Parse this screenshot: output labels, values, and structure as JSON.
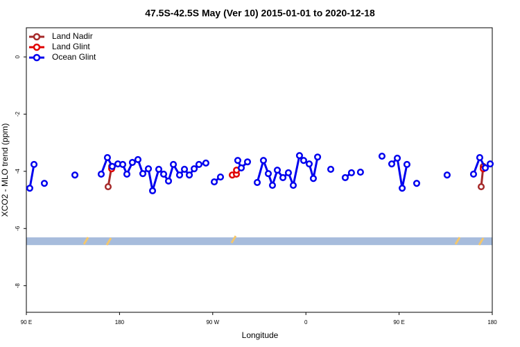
{
  "chart_data": {
    "type": "line",
    "title": "47.5S-42.5S May (Ver 10)   2015-01-01 to 2020-12-18",
    "x_label": "Longitude",
    "y_label": "XCO2 - MLO trend (ppm)",
    "xlim": [
      90,
      540
    ],
    "xticks": [
      {
        "value": 90,
        "label": "90 E"
      },
      180,
      {
        "value": 270,
        "label": "90 W"
      },
      {
        "value": 360,
        "label": "0"
      },
      {
        "value": 450,
        "label": "90 E"
      },
      180
    ],
    "ylim": [
      -8.93,
      1.02
    ],
    "yticks": [
      0,
      -2,
      -4,
      -6,
      -8
    ],
    "band": [
      -6.58,
      -6.31
    ],
    "band_color": "#a7bcdc",
    "legend": "top-left",
    "series": [
      {
        "name": "Land Nadir",
        "color": "#a52a2a",
        "x": [
          169.0,
          172.4,
          null,
          529.3,
          531.3
        ],
        "values": [
          -4.54,
          -3.83,
          null,
          -4.54,
          -3.83
        ]
      },
      {
        "name": "Land Glint",
        "color": "#e00000",
        "x": [
          172.4,
          null,
          288.9,
          292.9,
          293.0,
          null,
          531.3
        ],
        "values": [
          -3.91,
          null,
          -4.13,
          -4.1,
          -3.96,
          null,
          -3.91
        ]
      },
      {
        "name": "Ocean Glint",
        "color": "#0000ee",
        "x": [
          93.3,
          97.4,
          null,
          107.4,
          null,
          136.9,
          null,
          162.3,
          168.3,
          173.0,
          178.4,
          183.1,
          187.1,
          192.4,
          197.8,
          202.5,
          207.9,
          211.9,
          217.9,
          222.6,
          227.3,
          232.0,
          238.0,
          242.7,
          247.4,
          252.1,
          256.7,
          263.4,
          null,
          271.5,
          277.5,
          null,
          294.2,
          297.6,
          303.6,
          null,
          313.0,
          319.0,
          323.7,
          327.7,
          332.4,
          337.8,
          343.1,
          347.8,
          353.8,
          357.8,
          363.2,
          367.2,
          371.3,
          null,
          384.0,
          null,
          398.0,
          404.0,
          null,
          412.7,
          null,
          433.5,
          null,
          442.9,
          448.3,
          453.0,
          457.6,
          null,
          467.0,
          null,
          496.4,
          null,
          521.9,
          527.9,
          533.3,
          538.0
        ],
        "values": [
          -4.59,
          -3.76,
          null,
          -4.42,
          null,
          -4.13,
          null,
          -4.1,
          -3.52,
          -3.83,
          -3.74,
          -3.76,
          -4.1,
          -3.69,
          -3.59,
          -4.08,
          -3.91,
          -4.68,
          -3.93,
          -4.1,
          -4.34,
          -3.76,
          -4.13,
          -3.93,
          -4.13,
          -3.91,
          -3.76,
          -3.71,
          null,
          -4.37,
          -4.2,
          null,
          -3.62,
          -3.88,
          -3.67,
          null,
          -4.39,
          -3.62,
          -4.08,
          -4.49,
          -3.96,
          -4.22,
          -4.05,
          -4.49,
          -3.45,
          -3.62,
          -3.74,
          -4.25,
          -3.5,
          null,
          -3.93,
          null,
          -4.22,
          -4.05,
          null,
          -4.03,
          null,
          -3.47,
          null,
          -3.74,
          -3.54,
          -4.59,
          -3.76,
          null,
          -4.42,
          null,
          -4.13,
          null,
          -4.1,
          -3.52,
          -3.88,
          -3.74
        ]
      }
    ]
  }
}
